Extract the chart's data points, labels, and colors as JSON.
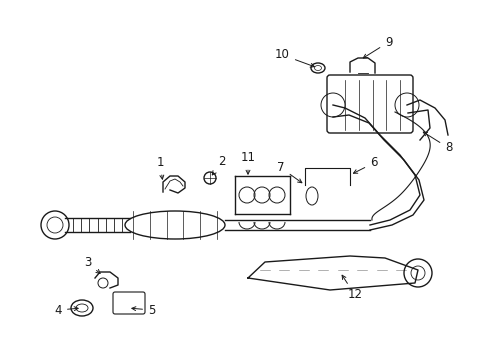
{
  "bg_color": "#ffffff",
  "line_color": "#1a1a1a",
  "figsize": [
    4.89,
    3.6
  ],
  "dpi": 100,
  "lw": 1.0
}
